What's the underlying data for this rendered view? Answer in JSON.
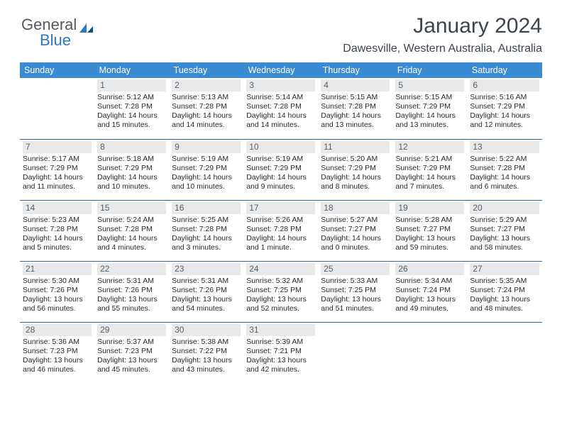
{
  "logo": {
    "text1": "General",
    "text2": "Blue"
  },
  "title": "January 2024",
  "subtitle": "Dawesville, Western Australia, Australia",
  "day_headers": [
    "Sunday",
    "Monday",
    "Tuesday",
    "Wednesday",
    "Thursday",
    "Friday",
    "Saturday"
  ],
  "header_bg": "#3a8bd1",
  "header_fg": "#ffffff",
  "daynum_bg": "#e8e9ea",
  "row_border": "#2b6aa6",
  "weeks": [
    [
      null,
      {
        "n": "1",
        "sr": "Sunrise: 5:12 AM",
        "ss": "Sunset: 7:28 PM",
        "d1": "Daylight: 14 hours",
        "d2": "and 15 minutes."
      },
      {
        "n": "2",
        "sr": "Sunrise: 5:13 AM",
        "ss": "Sunset: 7:28 PM",
        "d1": "Daylight: 14 hours",
        "d2": "and 14 minutes."
      },
      {
        "n": "3",
        "sr": "Sunrise: 5:14 AM",
        "ss": "Sunset: 7:28 PM",
        "d1": "Daylight: 14 hours",
        "d2": "and 14 minutes."
      },
      {
        "n": "4",
        "sr": "Sunrise: 5:15 AM",
        "ss": "Sunset: 7:28 PM",
        "d1": "Daylight: 14 hours",
        "d2": "and 13 minutes."
      },
      {
        "n": "5",
        "sr": "Sunrise: 5:15 AM",
        "ss": "Sunset: 7:29 PM",
        "d1": "Daylight: 14 hours",
        "d2": "and 13 minutes."
      },
      {
        "n": "6",
        "sr": "Sunrise: 5:16 AM",
        "ss": "Sunset: 7:29 PM",
        "d1": "Daylight: 14 hours",
        "d2": "and 12 minutes."
      }
    ],
    [
      {
        "n": "7",
        "sr": "Sunrise: 5:17 AM",
        "ss": "Sunset: 7:29 PM",
        "d1": "Daylight: 14 hours",
        "d2": "and 11 minutes."
      },
      {
        "n": "8",
        "sr": "Sunrise: 5:18 AM",
        "ss": "Sunset: 7:29 PM",
        "d1": "Daylight: 14 hours",
        "d2": "and 10 minutes."
      },
      {
        "n": "9",
        "sr": "Sunrise: 5:19 AM",
        "ss": "Sunset: 7:29 PM",
        "d1": "Daylight: 14 hours",
        "d2": "and 10 minutes."
      },
      {
        "n": "10",
        "sr": "Sunrise: 5:19 AM",
        "ss": "Sunset: 7:29 PM",
        "d1": "Daylight: 14 hours",
        "d2": "and 9 minutes."
      },
      {
        "n": "11",
        "sr": "Sunrise: 5:20 AM",
        "ss": "Sunset: 7:29 PM",
        "d1": "Daylight: 14 hours",
        "d2": "and 8 minutes."
      },
      {
        "n": "12",
        "sr": "Sunrise: 5:21 AM",
        "ss": "Sunset: 7:29 PM",
        "d1": "Daylight: 14 hours",
        "d2": "and 7 minutes."
      },
      {
        "n": "13",
        "sr": "Sunrise: 5:22 AM",
        "ss": "Sunset: 7:28 PM",
        "d1": "Daylight: 14 hours",
        "d2": "and 6 minutes."
      }
    ],
    [
      {
        "n": "14",
        "sr": "Sunrise: 5:23 AM",
        "ss": "Sunset: 7:28 PM",
        "d1": "Daylight: 14 hours",
        "d2": "and 5 minutes."
      },
      {
        "n": "15",
        "sr": "Sunrise: 5:24 AM",
        "ss": "Sunset: 7:28 PM",
        "d1": "Daylight: 14 hours",
        "d2": "and 4 minutes."
      },
      {
        "n": "16",
        "sr": "Sunrise: 5:25 AM",
        "ss": "Sunset: 7:28 PM",
        "d1": "Daylight: 14 hours",
        "d2": "and 3 minutes."
      },
      {
        "n": "17",
        "sr": "Sunrise: 5:26 AM",
        "ss": "Sunset: 7:28 PM",
        "d1": "Daylight: 14 hours",
        "d2": "and 1 minute."
      },
      {
        "n": "18",
        "sr": "Sunrise: 5:27 AM",
        "ss": "Sunset: 7:27 PM",
        "d1": "Daylight: 14 hours",
        "d2": "and 0 minutes."
      },
      {
        "n": "19",
        "sr": "Sunrise: 5:28 AM",
        "ss": "Sunset: 7:27 PM",
        "d1": "Daylight: 13 hours",
        "d2": "and 59 minutes."
      },
      {
        "n": "20",
        "sr": "Sunrise: 5:29 AM",
        "ss": "Sunset: 7:27 PM",
        "d1": "Daylight: 13 hours",
        "d2": "and 58 minutes."
      }
    ],
    [
      {
        "n": "21",
        "sr": "Sunrise: 5:30 AM",
        "ss": "Sunset: 7:26 PM",
        "d1": "Daylight: 13 hours",
        "d2": "and 56 minutes."
      },
      {
        "n": "22",
        "sr": "Sunrise: 5:31 AM",
        "ss": "Sunset: 7:26 PM",
        "d1": "Daylight: 13 hours",
        "d2": "and 55 minutes."
      },
      {
        "n": "23",
        "sr": "Sunrise: 5:31 AM",
        "ss": "Sunset: 7:26 PM",
        "d1": "Daylight: 13 hours",
        "d2": "and 54 minutes."
      },
      {
        "n": "24",
        "sr": "Sunrise: 5:32 AM",
        "ss": "Sunset: 7:25 PM",
        "d1": "Daylight: 13 hours",
        "d2": "and 52 minutes."
      },
      {
        "n": "25",
        "sr": "Sunrise: 5:33 AM",
        "ss": "Sunset: 7:25 PM",
        "d1": "Daylight: 13 hours",
        "d2": "and 51 minutes."
      },
      {
        "n": "26",
        "sr": "Sunrise: 5:34 AM",
        "ss": "Sunset: 7:24 PM",
        "d1": "Daylight: 13 hours",
        "d2": "and 49 minutes."
      },
      {
        "n": "27",
        "sr": "Sunrise: 5:35 AM",
        "ss": "Sunset: 7:24 PM",
        "d1": "Daylight: 13 hours",
        "d2": "and 48 minutes."
      }
    ],
    [
      {
        "n": "28",
        "sr": "Sunrise: 5:36 AM",
        "ss": "Sunset: 7:23 PM",
        "d1": "Daylight: 13 hours",
        "d2": "and 46 minutes."
      },
      {
        "n": "29",
        "sr": "Sunrise: 5:37 AM",
        "ss": "Sunset: 7:23 PM",
        "d1": "Daylight: 13 hours",
        "d2": "and 45 minutes."
      },
      {
        "n": "30",
        "sr": "Sunrise: 5:38 AM",
        "ss": "Sunset: 7:22 PM",
        "d1": "Daylight: 13 hours",
        "d2": "and 43 minutes."
      },
      {
        "n": "31",
        "sr": "Sunrise: 5:39 AM",
        "ss": "Sunset: 7:21 PM",
        "d1": "Daylight: 13 hours",
        "d2": "and 42 minutes."
      },
      null,
      null,
      null
    ]
  ]
}
